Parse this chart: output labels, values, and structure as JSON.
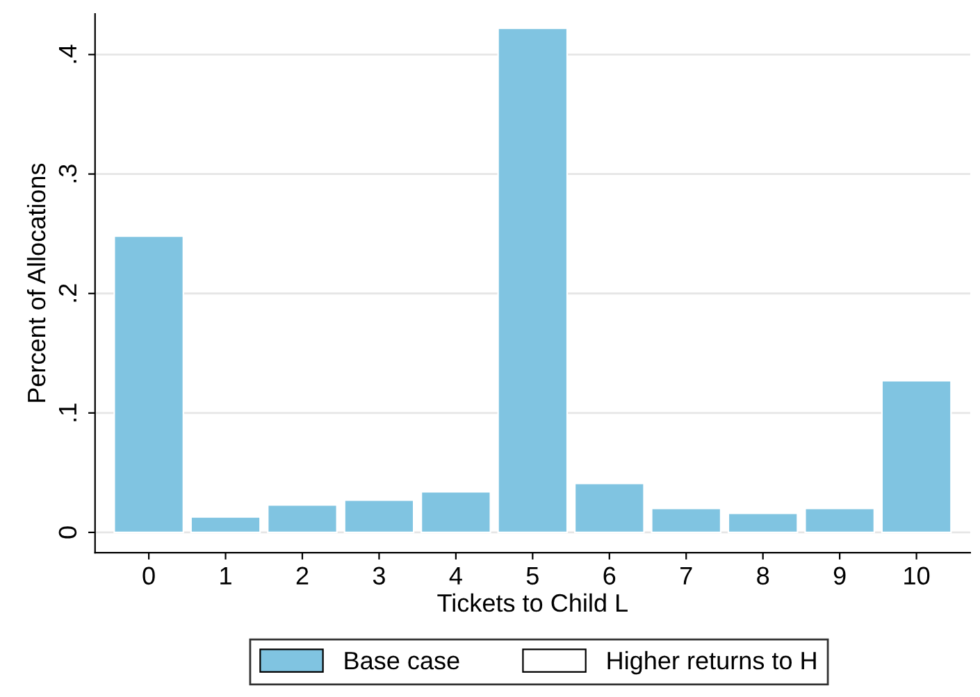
{
  "chart_data": {
    "type": "bar",
    "xlabel": "Tickets to Child L",
    "ylabel": "Percent of Allocations",
    "categories": [
      "0",
      "1",
      "2",
      "3",
      "4",
      "5",
      "6",
      "7",
      "8",
      "9",
      "10"
    ],
    "series": [
      {
        "name": "Base case",
        "color": "#80c4e1",
        "values": [
          0.248,
          0.013,
          0.023,
          0.027,
          0.034,
          0.422,
          0.041,
          0.02,
          0.016,
          0.02,
          0.127
        ]
      },
      {
        "name": "Higher returns to H",
        "color": "#ffffff",
        "values": [
          null,
          null,
          null,
          null,
          null,
          null,
          null,
          null,
          null,
          null,
          null
        ]
      }
    ],
    "ylim": [
      -0.017,
      0.434
    ],
    "yticks": [
      0,
      {
        "value": 0.1,
        "label": ".1"
      },
      {
        "value": 0.2,
        "label": ".2"
      },
      {
        "value": 0.3,
        "label": ".3"
      },
      {
        "value": 0.4,
        "label": ".4"
      }
    ],
    "grid": "y",
    "legend": "bottom"
  }
}
